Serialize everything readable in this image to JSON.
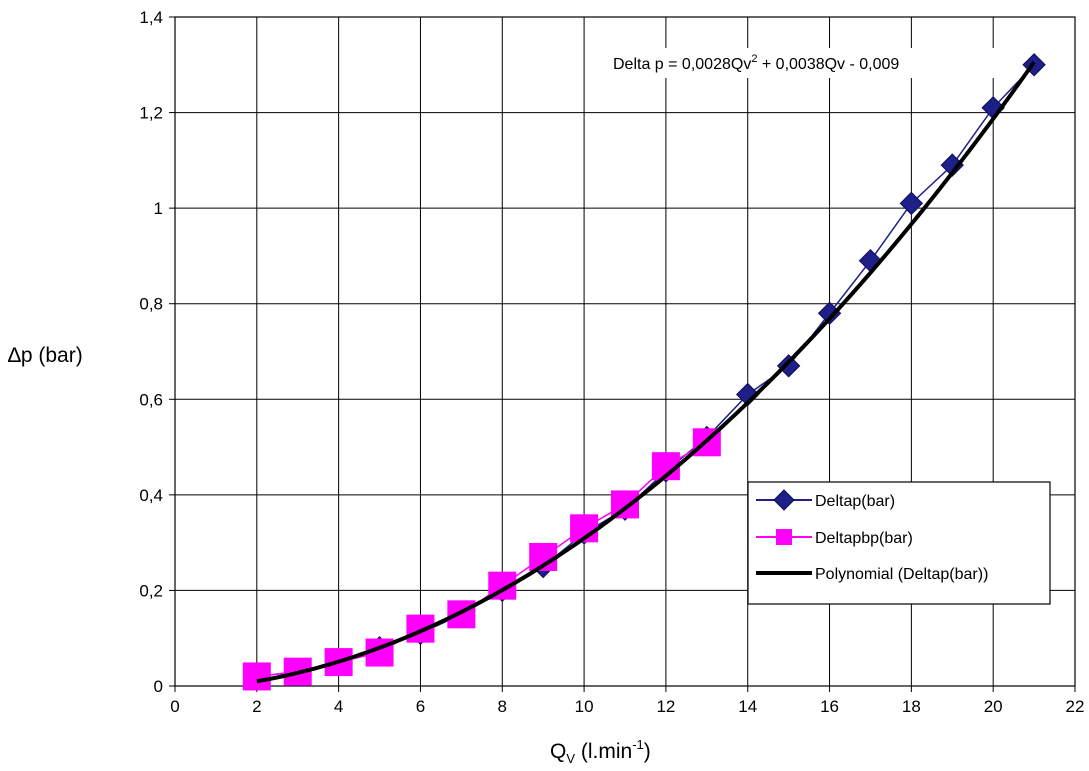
{
  "chart_data": {
    "type": "scatter",
    "xlabel": "Q",
    "xlabel_sub": "V",
    "xlabel_rest": " (l.min",
    "xlabel_sup": "-1",
    "xlabel_end": ")",
    "ylabel": "∆p (bar)",
    "xlim": [
      0,
      22
    ],
    "ylim": [
      0,
      1.4
    ],
    "x_ticks": [
      "0",
      "2",
      "4",
      "6",
      "8",
      "10",
      "12",
      "14",
      "16",
      "18",
      "20",
      "22"
    ],
    "y_ticks": [
      "0",
      "0,2",
      "0,4",
      "0,6",
      "0,8",
      "1",
      "1,2",
      "1,4"
    ],
    "grid": true,
    "legend_position": "right, middle-lower",
    "equation": {
      "part1": "Delta p = 0,0028Qv",
      "sup": "2",
      "part2": " + 0,0038Qv - 0,009"
    },
    "series": [
      {
        "name": "Deltap(bar)",
        "marker": "diamond",
        "color": "#1f1f8a",
        "x": [
          2,
          3,
          4,
          5,
          6,
          7,
          8,
          9,
          10,
          11,
          12,
          13,
          14,
          15,
          16,
          17,
          18,
          19,
          20,
          21
        ],
        "y": [
          0.02,
          0.03,
          0.05,
          0.08,
          0.11,
          0.15,
          0.2,
          0.25,
          0.32,
          0.37,
          0.45,
          0.52,
          0.61,
          0.67,
          0.78,
          0.89,
          1.01,
          1.09,
          1.21,
          1.3
        ]
      },
      {
        "name": "Deltapbp(bar)",
        "marker": "square",
        "color": "#ff00ff",
        "x": [
          2,
          3,
          4,
          5,
          6,
          7,
          8,
          9,
          10,
          11,
          12,
          13
        ],
        "y": [
          0.02,
          0.03,
          0.05,
          0.07,
          0.12,
          0.15,
          0.21,
          0.27,
          0.33,
          0.38,
          0.46,
          0.51
        ]
      },
      {
        "name": "Polynomial (Deltap(bar))",
        "type": "trendline",
        "color": "#000000",
        "coefficients": [
          0.0028,
          0.0038,
          -0.009
        ],
        "x_range": [
          2,
          21
        ]
      }
    ]
  }
}
